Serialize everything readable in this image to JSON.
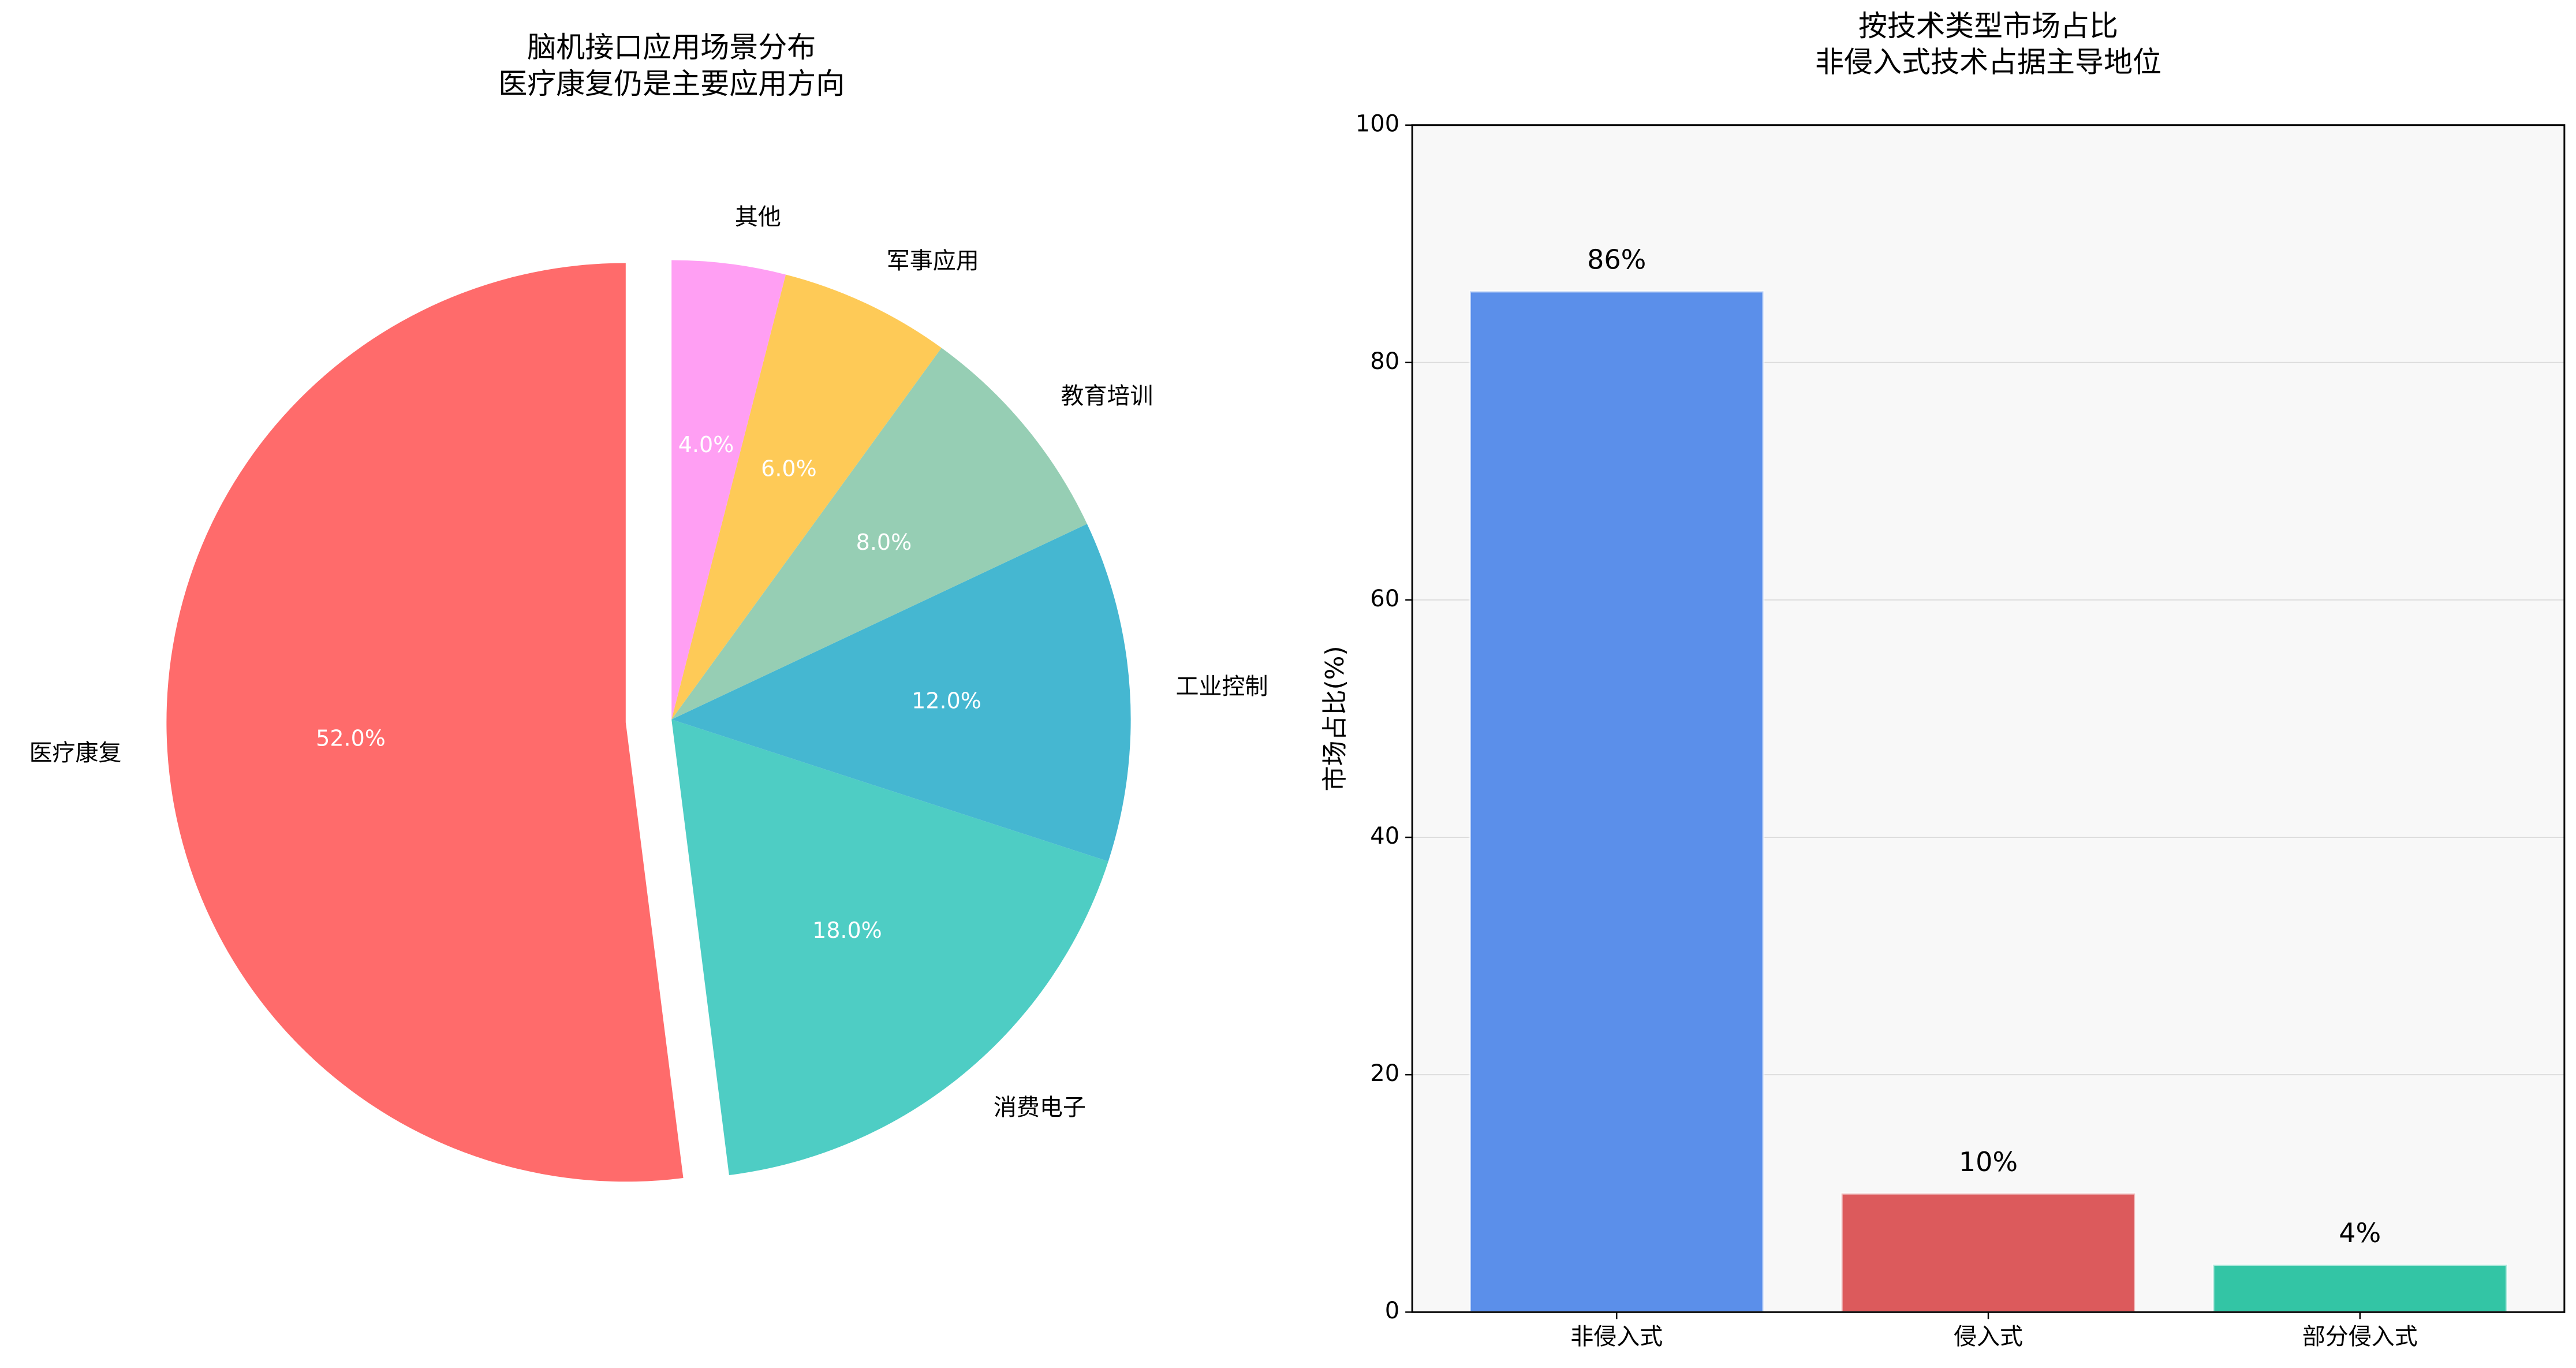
{
  "chart_data": [
    {
      "type": "pie",
      "title": [
        "脑机接口应用场景分布",
        "医疗康复仍是主要应用方向"
      ],
      "categories": [
        "医疗康复",
        "消费电子",
        "工业控制",
        "教育培训",
        "军事应用",
        "其他"
      ],
      "values": [
        52,
        18,
        12,
        8,
        6,
        4
      ],
      "value_labels": [
        "52.0%",
        "18.0%",
        "12.0%",
        "8.0%",
        "6.0%",
        "4.0%"
      ],
      "colors": [
        "#ff6b6b",
        "#4ecdc4",
        "#45b7d1",
        "#96ceb4",
        "#feca57",
        "#ff9ff3"
      ],
      "explode": [
        0.1,
        0,
        0,
        0,
        0,
        0
      ]
    },
    {
      "type": "bar",
      "title": [
        "按技术类型市场占比",
        "非侵入式技术占据主导地位"
      ],
      "ylabel": "市场占比(%)",
      "categories": [
        "非侵入式",
        "侵入式",
        "部分侵入式"
      ],
      "values": [
        86,
        10,
        4
      ],
      "value_labels": [
        "86%",
        "10%",
        "4%"
      ],
      "colors": [
        "#5b8fea",
        "#dc5a5c",
        "#33c5a5"
      ],
      "ylim": [
        0,
        100
      ],
      "yticks": [
        0,
        20,
        40,
        60,
        80,
        100
      ],
      "grid": true
    }
  ]
}
